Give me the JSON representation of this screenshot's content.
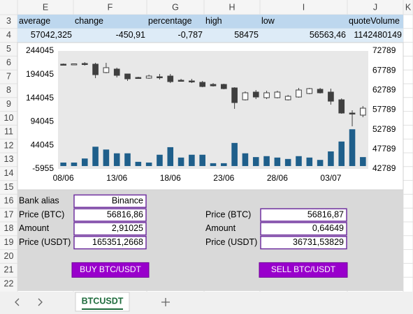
{
  "column_headers": [
    "E",
    "F",
    "G",
    "H",
    "I",
    "J",
    "K"
  ],
  "row_headers": [
    3,
    4,
    5,
    6,
    7,
    8,
    9,
    10,
    11,
    12,
    13,
    14,
    15,
    16,
    17,
    18,
    19,
    20,
    21,
    22
  ],
  "summary": {
    "header": [
      "average",
      "change",
      "percentage",
      "high",
      "low",
      "quoteVolume"
    ],
    "values": [
      "57042,325",
      "-450,91",
      "-0,787",
      "58475",
      "56563,46",
      "1142480149"
    ]
  },
  "chart_data": {
    "type": "candlestick",
    "categories": [
      "08/06",
      null,
      null,
      null,
      null,
      "13/06",
      null,
      null,
      null,
      null,
      "18/06",
      null,
      null,
      null,
      null,
      "23/06",
      null,
      null,
      null,
      null,
      "28/06",
      null,
      null,
      null,
      null,
      "03/07",
      null,
      null,
      null
    ],
    "ylim": [
      -5955,
      244045
    ],
    "yticks": [
      -5955,
      44045,
      94045,
      144045,
      194045,
      244045
    ],
    "y2lim": [
      42789,
      72789
    ],
    "y2ticks": [
      42789,
      47789,
      52789,
      57789,
      62789,
      67789,
      72789
    ],
    "series": [
      {
        "type": "bar",
        "color": "#1f5f8b",
        "values": [
          7400,
          7400,
          16000,
          41000,
          35000,
          27000,
          27000,
          9000,
          7400,
          24000,
          40000,
          18000,
          24000,
          24000,
          6000,
          6000,
          49000,
          27000,
          19000,
          21000,
          18000,
          15000,
          21000,
          18000,
          13000,
          31000,
          52000,
          78000,
          19000
        ]
      },
      {
        "type": "candlestick",
        "axis": "y2",
        "up_color": "#ffffff",
        "down_color": "#3f3f3f",
        "open": [
          69420,
          69330,
          69590,
          69420,
          67290,
          68170,
          66930,
          66040,
          65870,
          66220,
          66400,
          65330,
          65160,
          64800,
          64270,
          64270,
          63380,
          60360,
          62320,
          60900,
          60900,
          60360,
          61070,
          61960,
          63030,
          62320,
          60360,
          56990,
          56460
        ],
        "high": [
          69590,
          69590,
          69950,
          69770,
          69770,
          68530,
          66930,
          66220,
          66760,
          66930,
          66930,
          65690,
          65690,
          65160,
          64620,
          64450,
          63560,
          62490,
          62850,
          62670,
          62670,
          61600,
          63380,
          63380,
          63380,
          63200,
          60720,
          57700,
          58770
        ],
        "low": [
          69240,
          69240,
          69060,
          65870,
          67110,
          66040,
          65160,
          65690,
          65690,
          65510,
          64620,
          64980,
          64620,
          63560,
          63740,
          63030,
          58060,
          60190,
          60540,
          60540,
          60720,
          60190,
          60900,
          61780,
          61960,
          59120,
          56810,
          53620,
          55930
        ],
        "close": [
          69330,
          69500,
          69420,
          66750,
          68530,
          66580,
          65690,
          65870,
          66400,
          66040,
          64980,
          65160,
          64980,
          63740,
          63910,
          63200,
          59650,
          62140,
          61070,
          62140,
          62320,
          61250,
          62850,
          63200,
          62140,
          60010,
          56990,
          56810,
          58230
        ]
      }
    ]
  },
  "order_form": {
    "bank_alias_label": "Bank alias",
    "bank_alias": "Binance",
    "buy": {
      "price_label": "Price (BTC)",
      "price": "56816,86",
      "amount_label": "Amount",
      "amount": "2,91025",
      "total_label": "Price (USDT)",
      "total": "165351,2668",
      "button": "BUY BTC/USDT"
    },
    "sell": {
      "price_label": "Price (BTC)",
      "price": "56816,87",
      "amount_label": "Amount",
      "amount": "0,64649",
      "total_label": "Price (USDT)",
      "total": "36731,53829",
      "button": "SELL BTC/USDT"
    }
  },
  "sheet_tabs": [
    "BTCUSDT"
  ]
}
